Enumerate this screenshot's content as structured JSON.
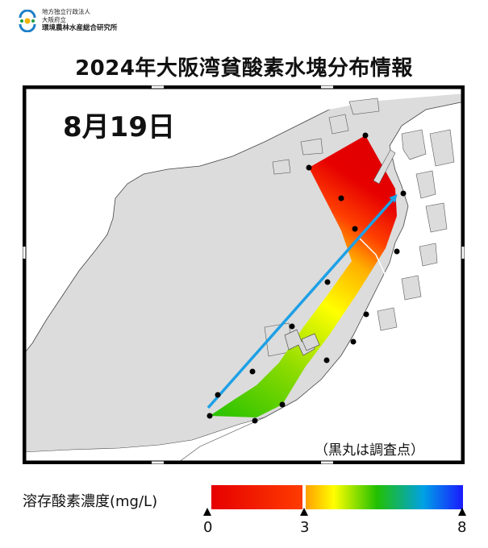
{
  "logo": {
    "line1": "地方独立行政法人",
    "line2": "大阪府立",
    "line3": "環境農林水産総合研究所"
  },
  "title": "2024年大阪湾貧酸素水塊分布情報",
  "date": "8月19日",
  "note": "（黒丸は調査点）",
  "legend": {
    "label": "溶存酸素濃度(mg/L)",
    "min": 0,
    "threshold": 3,
    "max": 8,
    "tick_labels": [
      "0",
      "3",
      "8"
    ]
  },
  "colors": {
    "low": "#e60000",
    "mid": "#ffff00",
    "green": "#22c000",
    "high": "#1a1aff",
    "land": "#ffffff",
    "sea": "#dcdcdc",
    "arrow": "#1ea0e6"
  },
  "survey_point_count": 16
}
